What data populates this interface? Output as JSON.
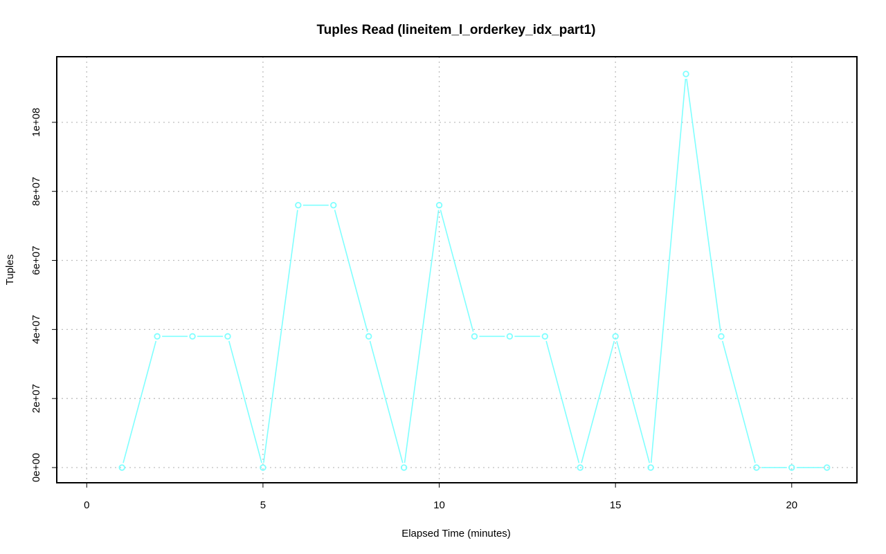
{
  "chart_data": {
    "type": "line",
    "title": "Tuples Read (lineitem_l_orderkey_idx_part1)",
    "xlabel": "Elapsed Time (minutes)",
    "ylabel": "Tuples",
    "xlim": [
      -0.85,
      21.85
    ],
    "ylim": [
      -4400000,
      119000000
    ],
    "x_ticks": [
      0,
      5,
      10,
      15,
      20
    ],
    "x_tick_labels": [
      "0",
      "5",
      "10",
      "15",
      "20"
    ],
    "y_ticks": [
      0,
      20000000,
      40000000,
      60000000,
      80000000,
      100000000
    ],
    "y_tick_labels": [
      "0e+00",
      "2e+07",
      "4e+07",
      "6e+07",
      "8e+07",
      "1e+08"
    ],
    "grid": true,
    "series_color": "#7fffff",
    "series": [
      {
        "x": [
          1,
          2,
          3,
          4,
          5,
          6,
          7,
          8,
          9,
          10,
          11,
          12,
          13,
          14,
          15,
          16,
          17,
          18,
          19,
          20,
          21
        ],
        "y": [
          0,
          38000000,
          38000000,
          38000000,
          0,
          76000000,
          76000000,
          38000000,
          0,
          76000000,
          38000000,
          38000000,
          38000000,
          0,
          38000000,
          0,
          114000000,
          38000000,
          0,
          0,
          0
        ]
      }
    ]
  }
}
